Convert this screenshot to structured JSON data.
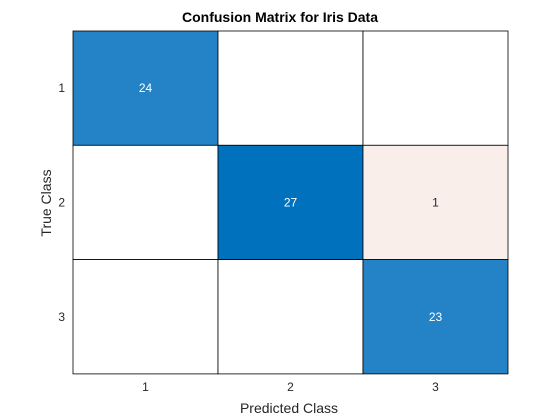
{
  "chart_data": {
    "type": "heatmap",
    "title": "Confusion Matrix for Iris Data",
    "xlabel": "Predicted Class",
    "ylabel": "True Class",
    "row_labels": [
      "1",
      "2",
      "3"
    ],
    "col_labels": [
      "1",
      "2",
      "3"
    ],
    "matrix": [
      [
        24,
        0,
        0
      ],
      [
        0,
        27,
        1
      ],
      [
        0,
        0,
        23
      ]
    ],
    "grid": true,
    "colors": {
      "correct_high": "#0072bd",
      "correct_low": "#2383c6",
      "error": "#faeeea",
      "empty": "#ffffff",
      "border": "#000000",
      "text_dark_bg": "#ffffff",
      "text_light_bg": "#262626"
    }
  }
}
